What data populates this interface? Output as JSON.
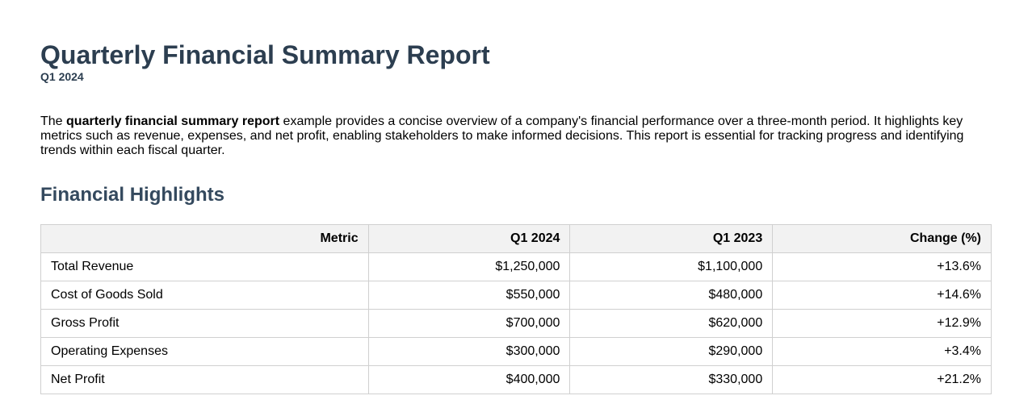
{
  "report": {
    "title": "Quarterly Financial Summary Report",
    "subtitle": "Q1 2024",
    "intro": {
      "before": "The ",
      "bold": "quarterly financial summary report",
      "after": " example provides a concise overview of a company's financial performance over a three-month period. It highlights key metrics such as revenue, expenses, and net profit, enabling stakeholders to make informed decisions. This report is essential for tracking progress and identifying trends within each fiscal quarter."
    }
  },
  "highlights": {
    "heading": "Financial Highlights",
    "columns": [
      "Metric",
      "Q1 2024",
      "Q1 2023",
      "Change (%)"
    ],
    "rows": [
      {
        "metric": "Total Revenue",
        "q1_2024": "$1,250,000",
        "q1_2023": "$1,100,000",
        "change": "+13.6%"
      },
      {
        "metric": "Cost of Goods Sold",
        "q1_2024": "$550,000",
        "q1_2023": "$480,000",
        "change": "+14.6%"
      },
      {
        "metric": "Gross Profit",
        "q1_2024": "$700,000",
        "q1_2023": "$620,000",
        "change": "+12.9%"
      },
      {
        "metric": "Operating Expenses",
        "q1_2024": "$300,000",
        "q1_2023": "$290,000",
        "change": "+3.4%"
      },
      {
        "metric": "Net Profit",
        "q1_2024": "$400,000",
        "q1_2023": "$330,000",
        "change": "+21.2%"
      }
    ]
  },
  "colors": {
    "title": "#2c3e50",
    "heading": "#34495e",
    "table_header_bg": "#f2f2f2",
    "table_border": "#d0d0d0"
  }
}
